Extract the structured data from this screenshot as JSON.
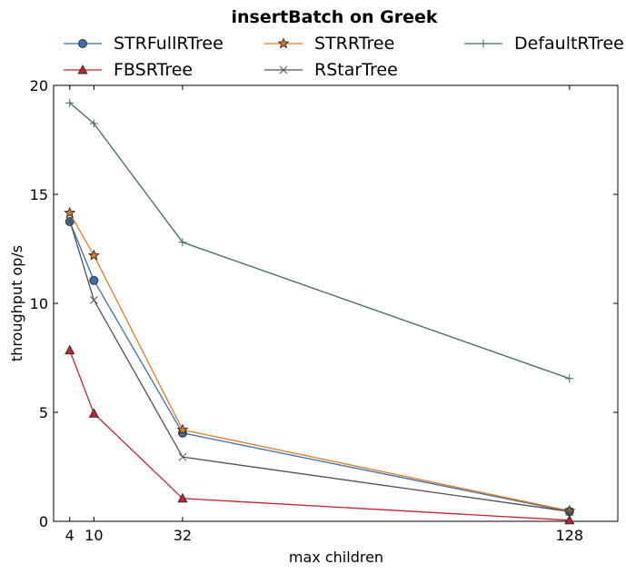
{
  "chart_data": {
    "type": "line",
    "title": "insertBatch on Greek",
    "xlabel": "max children",
    "ylabel": "throughput op/s",
    "x": [
      4,
      10,
      32,
      128
    ],
    "x_ticks": [
      "4",
      "10",
      "32",
      "128"
    ],
    "y_ticks": [
      "0",
      "5",
      "10",
      "15",
      "20"
    ],
    "xlim": [
      0,
      140
    ],
    "ylim": [
      0,
      20
    ],
    "grid": false,
    "legend_position": "top",
    "series": [
      {
        "name": "STRFullRTree",
        "color": "#3a6fb0",
        "marker": "circle",
        "values": [
          13.75,
          11.05,
          4.05,
          0.45
        ]
      },
      {
        "name": "STRRTree",
        "color": "#e07b1f",
        "marker": "star",
        "values": [
          14.15,
          12.2,
          4.2,
          0.48
        ]
      },
      {
        "name": "DefaultRTree",
        "color": "#3d6b5a",
        "marker": "plus",
        "values": [
          19.2,
          18.25,
          12.8,
          6.55
        ]
      },
      {
        "name": "FBSRTree",
        "color": "#c8222a",
        "marker": "triangle",
        "values": [
          7.85,
          4.95,
          1.05,
          0.05
        ]
      },
      {
        "name": "RStarTree",
        "color": "#505050",
        "marker": "x",
        "values": [
          13.8,
          10.15,
          2.95,
          0.45
        ]
      }
    ]
  }
}
